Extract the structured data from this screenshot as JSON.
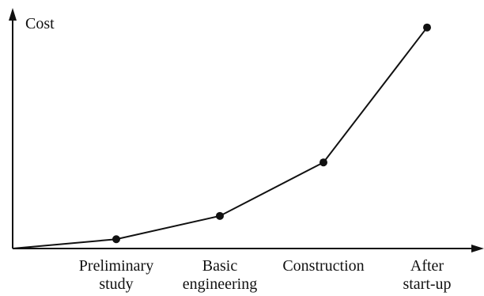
{
  "chart_data": {
    "type": "line",
    "title": "",
    "ylabel": "Cost",
    "xlabel": "",
    "categories": [
      [
        "Preliminary",
        "study"
      ],
      [
        "Basic",
        "engineering"
      ],
      [
        "Construction"
      ],
      [
        "After",
        "start-up"
      ]
    ],
    "series": [
      {
        "x": [
          0,
          1,
          2,
          3,
          4
        ],
        "values": [
          0,
          4,
          14,
          37,
          95
        ]
      }
    ],
    "ylim": [
      0,
      100
    ],
    "grid": false,
    "legend": "none",
    "line_color": "#111111",
    "marker": "filled-circle"
  }
}
